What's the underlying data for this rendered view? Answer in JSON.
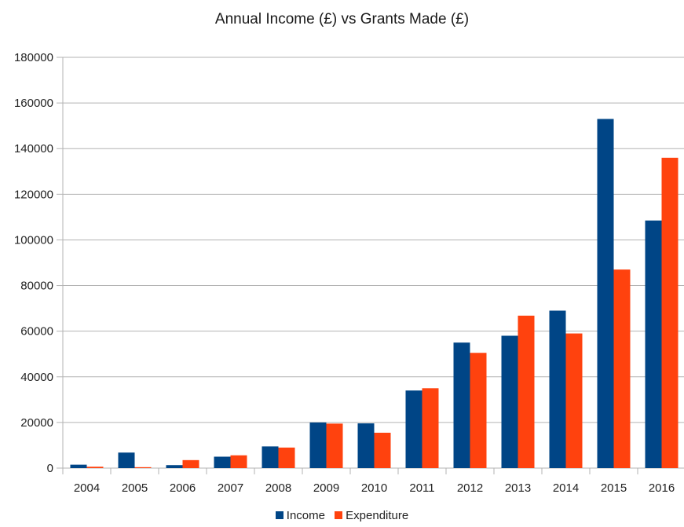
{
  "chart_data": {
    "type": "bar",
    "title": "Annual Income (£) vs Grants Made (£)",
    "xlabel": "",
    "ylabel": "",
    "ylim": [
      0,
      180000
    ],
    "yticks": [
      "0",
      "20000",
      "40000",
      "60000",
      "80000",
      "100000",
      "120000",
      "140000",
      "160000",
      "180000"
    ],
    "categories": [
      "2004",
      "2005",
      "2006",
      "2007",
      "2008",
      "2009",
      "2010",
      "2011",
      "2012",
      "2013",
      "2014",
      "2015",
      "2016"
    ],
    "series": [
      {
        "name": "Income",
        "color": "#004586",
        "values": [
          1500,
          6800,
          1300,
          5000,
          9500,
          20000,
          19600,
          34000,
          55000,
          58000,
          69000,
          153000,
          108500
        ]
      },
      {
        "name": "Expenditure",
        "color": "#ff420e",
        "values": [
          600,
          400,
          3500,
          5600,
          9000,
          19500,
          15500,
          35000,
          50500,
          66800,
          59000,
          87000,
          136000
        ]
      }
    ],
    "grid": true,
    "legend": "bottom"
  }
}
